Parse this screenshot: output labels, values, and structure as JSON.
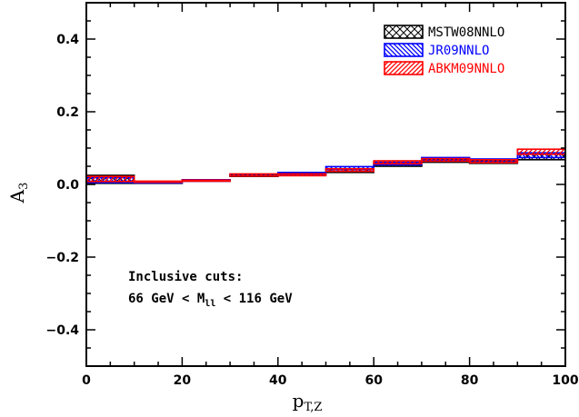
{
  "chart_data": {
    "type": "histogram-band",
    "xlabel": {
      "main": "p",
      "sub": "T,Z"
    },
    "ylabel": {
      "main": "A",
      "sub": "3"
    },
    "xlim": [
      0,
      100
    ],
    "ylim": [
      -0.5,
      0.5
    ],
    "x_ticks": [
      "0",
      "20",
      "40",
      "60",
      "80",
      "100"
    ],
    "y_ticks": [
      "−0.4",
      "−0.2",
      "0.0",
      "0.2",
      "0.4"
    ],
    "x_tick_values": [
      0,
      20,
      40,
      60,
      80,
      100
    ],
    "y_tick_values": [
      -0.4,
      -0.2,
      0.0,
      0.2,
      0.4
    ],
    "bins": [
      0,
      10,
      20,
      30,
      40,
      50,
      60,
      70,
      80,
      90,
      100
    ],
    "series": [
      {
        "name": "MSTW08NNLO",
        "color": "#000000",
        "pattern": "crosshatch",
        "low": [
          0.003,
          0.004,
          0.009,
          0.022,
          0.026,
          0.033,
          0.05,
          0.061,
          0.058,
          0.068
        ],
        "high": [
          0.025,
          0.006,
          0.012,
          0.027,
          0.031,
          0.041,
          0.058,
          0.069,
          0.066,
          0.084
        ]
      },
      {
        "name": "JR09NNLO",
        "color": "#0000ff",
        "pattern": "hatch-down",
        "low": [
          0.005,
          0.004,
          0.009,
          0.023,
          0.027,
          0.041,
          0.054,
          0.066,
          0.062,
          0.074
        ],
        "high": [
          0.019,
          0.008,
          0.013,
          0.028,
          0.033,
          0.049,
          0.061,
          0.074,
          0.07,
          0.087
        ]
      },
      {
        "name": "ABKM09NNLO",
        "color": "#ff0000",
        "pattern": "hatch-up",
        "low": [
          0.008,
          0.006,
          0.01,
          0.023,
          0.024,
          0.036,
          0.057,
          0.064,
          0.06,
          0.083
        ],
        "high": [
          0.022,
          0.009,
          0.012,
          0.029,
          0.029,
          0.043,
          0.065,
          0.071,
          0.068,
          0.097
        ]
      }
    ],
    "legend_position": "top-right",
    "annotation": {
      "line1": "Inclusive cuts:",
      "line2_prefix": "66 GeV < M",
      "line2_sub": "ll",
      "line2_suffix": " < 116 GeV"
    }
  }
}
